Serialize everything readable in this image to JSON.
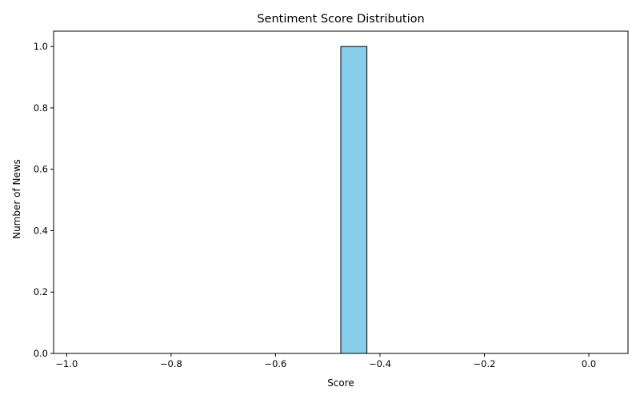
{
  "chart_data": {
    "type": "bar",
    "title": "Sentiment Score Distribution",
    "xlabel": "Score",
    "ylabel": "Number of News",
    "xlim": [
      -1.025,
      0.075
    ],
    "ylim": [
      0,
      1.05
    ],
    "xticks": [
      -1.0,
      -0.8,
      -0.6,
      -0.4,
      -0.2,
      0.0
    ],
    "xtick_labels": [
      "−1.0",
      "−0.8",
      "−0.6",
      "−0.4",
      "−0.2",
      "0.0"
    ],
    "yticks": [
      0.0,
      0.2,
      0.4,
      0.6,
      0.8,
      1.0
    ],
    "ytick_labels": [
      "0.0",
      "0.2",
      "0.4",
      "0.6",
      "0.8",
      "1.0"
    ],
    "bins": [
      {
        "x0": -1.0,
        "x1": -0.95,
        "value": 0
      },
      {
        "x0": -0.95,
        "x1": -0.9,
        "value": 0
      },
      {
        "x0": -0.9,
        "x1": -0.85,
        "value": 0
      },
      {
        "x0": -0.85,
        "x1": -0.8,
        "value": 0
      },
      {
        "x0": -0.8,
        "x1": -0.75,
        "value": 0
      },
      {
        "x0": -0.75,
        "x1": -0.7,
        "value": 0
      },
      {
        "x0": -0.7,
        "x1": -0.65,
        "value": 0
      },
      {
        "x0": -0.65,
        "x1": -0.6,
        "value": 0
      },
      {
        "x0": -0.6,
        "x1": -0.55,
        "value": 0
      },
      {
        "x0": -0.55,
        "x1": -0.5,
        "value": 0
      },
      {
        "x0": -0.5,
        "x1": -0.475,
        "value": 0
      },
      {
        "x0": -0.475,
        "x1": -0.425,
        "value": 1
      },
      {
        "x0": -0.425,
        "x1": -0.4,
        "value": 0
      },
      {
        "x0": -0.4,
        "x1": -0.35,
        "value": 0
      },
      {
        "x0": -0.35,
        "x1": -0.3,
        "value": 0
      },
      {
        "x0": -0.3,
        "x1": -0.25,
        "value": 0
      },
      {
        "x0": -0.25,
        "x1": -0.2,
        "value": 0
      },
      {
        "x0": -0.2,
        "x1": -0.15,
        "value": 0
      },
      {
        "x0": -0.15,
        "x1": -0.1,
        "value": 0
      },
      {
        "x0": -0.1,
        "x1": -0.05,
        "value": 0
      },
      {
        "x0": -0.05,
        "x1": 0.0,
        "value": 0
      }
    ],
    "bar_color": "#87ceeb",
    "edge_color": "#000000",
    "grid": false,
    "legend": "none"
  }
}
